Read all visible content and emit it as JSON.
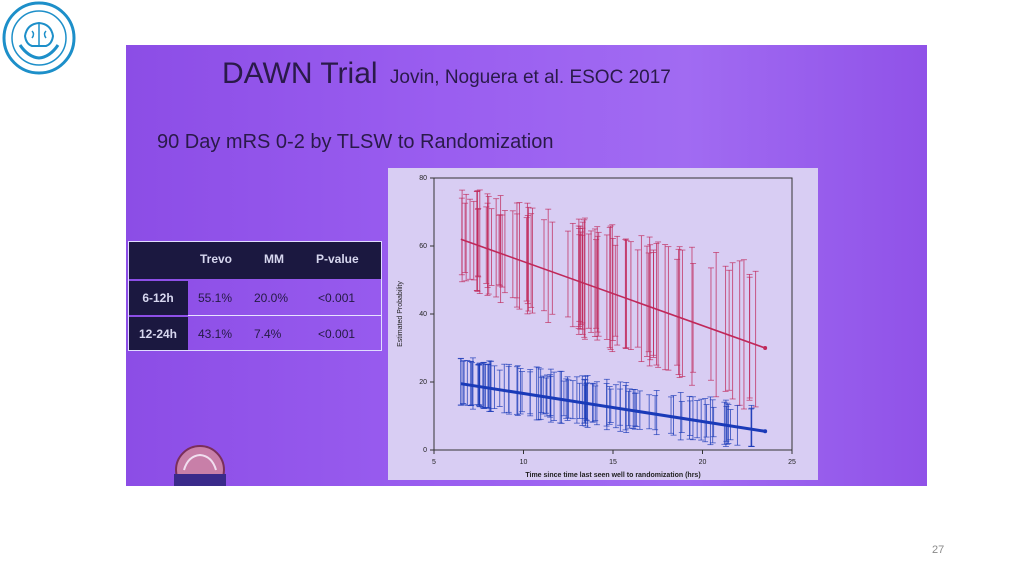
{
  "slide": {
    "title": "DAWN Trial",
    "title_authors": "Jovin, Noguera et al. ESOC 2017",
    "subtitle": "90 Day mRS 0-2 by TLSW to Randomization",
    "page_number": "27"
  },
  "table": {
    "headers": [
      "Trevo",
      "MM",
      "P-value"
    ],
    "rows": [
      {
        "label": "6-12h",
        "trevo": "55.1%",
        "mm": "20.0%",
        "p": "<0.001"
      },
      {
        "label": "12-24h",
        "trevo": "43.1%",
        "mm": "7.4%",
        "p": "<0.001"
      }
    ]
  },
  "chart_data": {
    "type": "line",
    "xlabel": "Time since time last seen well to randomization (hrs)",
    "ylabel": "Estimated Probability",
    "xlim": [
      5,
      25
    ],
    "ylim": [
      0,
      80
    ],
    "xticks": [
      "5",
      "10",
      "15",
      "20",
      "25"
    ],
    "yticks": [
      "0",
      "20",
      "40",
      "60",
      "80"
    ],
    "grid": false,
    "series": [
      {
        "color": "#c0285a",
        "x": [
          6.5,
          23.5
        ],
        "y": [
          62,
          30
        ],
        "errorbars": "dense"
      },
      {
        "color": "#1a3ab8",
        "x": [
          6.5,
          23.5
        ],
        "y": [
          19.5,
          5.5
        ],
        "errorbars": "dense"
      }
    ]
  },
  "icons": {
    "top_logo": "brain-hands-logo-icon",
    "bottom_logo": "dawn-logo-icon"
  }
}
